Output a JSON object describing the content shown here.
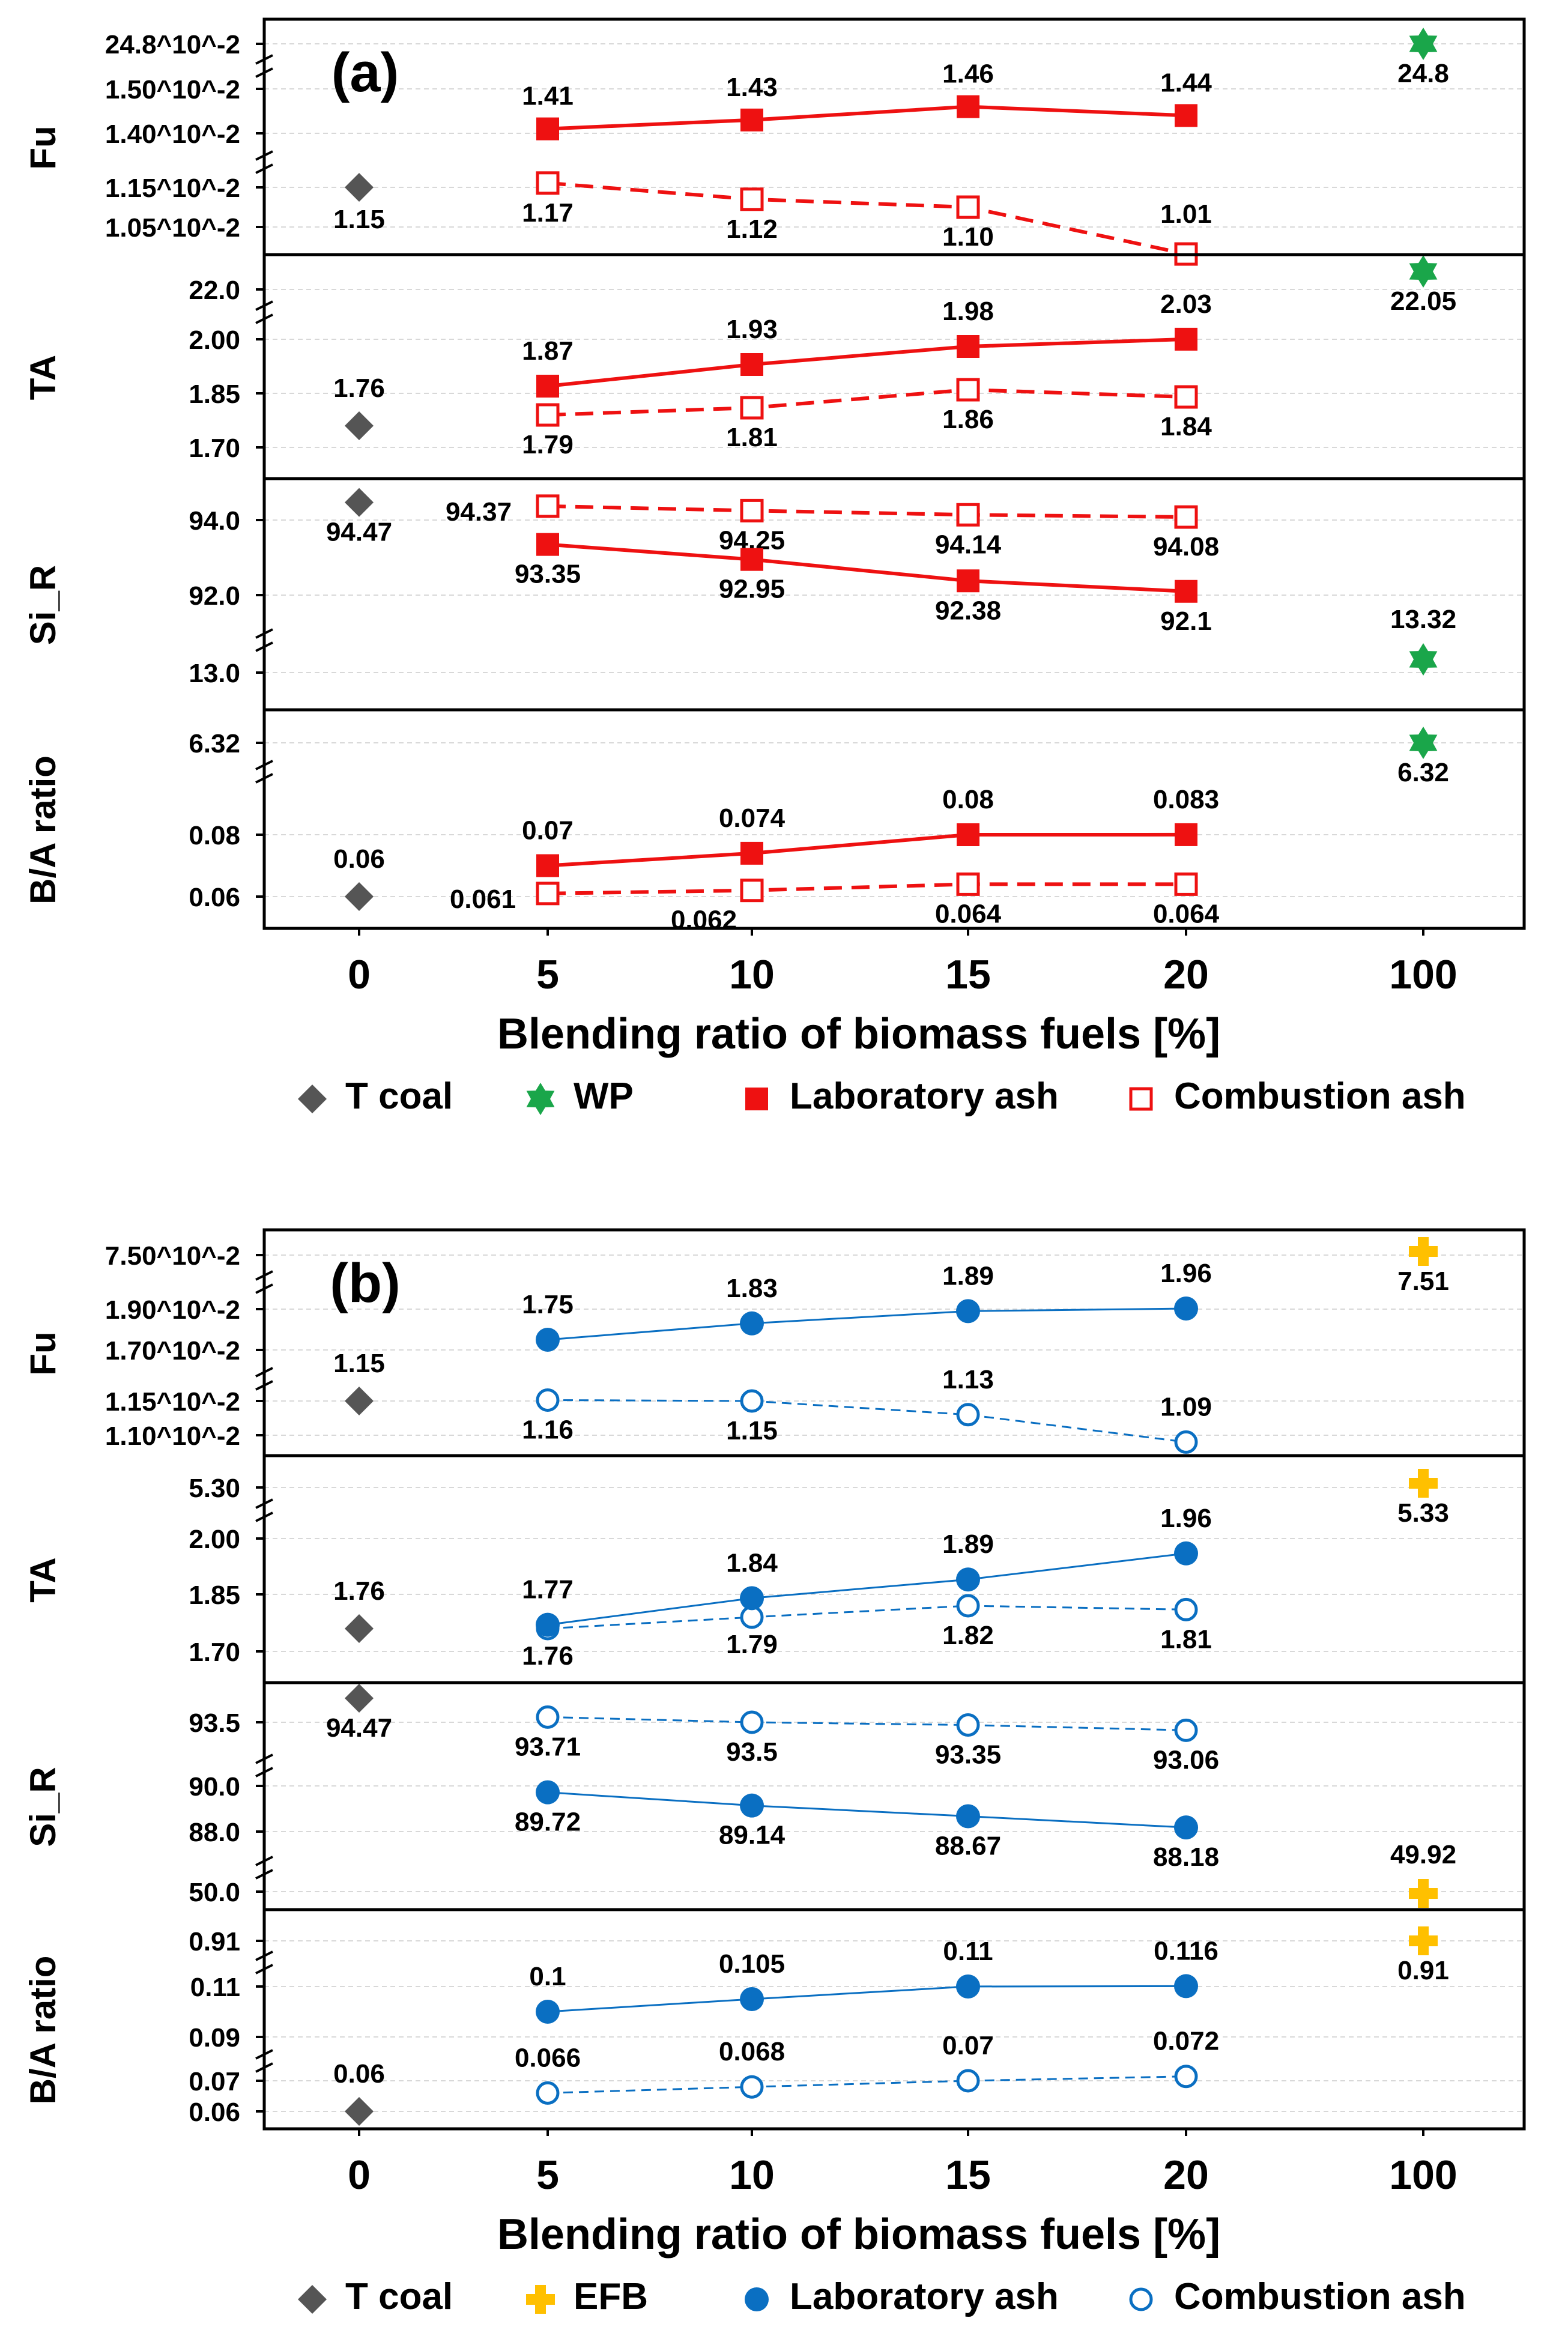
{
  "colors": {
    "tcoal": "#555555",
    "wp": "#1aa64a",
    "lab_a": "#ee1111",
    "efb": "#ffc000",
    "lab_b": "#0a6fc2",
    "axis": "#000000",
    "grid": "#d8d8d8"
  },
  "chart_data": [
    {
      "type": "line",
      "panel_label": "(a)",
      "x": [
        "0",
        "5",
        "10",
        "15",
        "20",
        "100"
      ],
      "xlabel": "Blending ratio of biomass fuels [%]",
      "legend": [
        {
          "label": "T coal",
          "marker": "diamond",
          "color": "#555555"
        },
        {
          "label": "WP",
          "marker": "star",
          "color": "#1aa64a"
        },
        {
          "label": "Laboratory ash",
          "marker": "square-filled",
          "color": "#ee1111"
        },
        {
          "label": "Combustion ash",
          "marker": "square-open",
          "color": "#ee1111"
        }
      ],
      "subplots": [
        {
          "ylabel": "Fu",
          "yticks": [
            "24.8^10^-2",
            "1.50^10^-2",
            "1.40^10^-2",
            "1.15^10^-2",
            "1.05^10^-2"
          ],
          "single_points": [
            {
              "series": "T coal",
              "x": "0",
              "value": 1.15,
              "label": "1.15"
            },
            {
              "series": "WP",
              "x": "100",
              "value": 24.8,
              "label": "24.8"
            }
          ],
          "series": [
            {
              "name": "Laboratory ash",
              "x": [
                "5",
                "10",
                "15",
                "20"
              ],
              "values": [
                1.41,
                1.43,
                1.46,
                1.44
              ],
              "labels": [
                "1.41",
                "1.43",
                "1.46",
                "1.44"
              ]
            },
            {
              "name": "Combustion ash",
              "x": [
                "5",
                "10",
                "15",
                "20"
              ],
              "values": [
                1.17,
                1.12,
                1.1,
                1.01
              ],
              "labels": [
                "1.17",
                "1.12",
                "1.10",
                "1.01"
              ]
            }
          ]
        },
        {
          "ylabel": "TA",
          "yticks": [
            "22.0",
            "2.00",
            "1.85",
            "1.70"
          ],
          "single_points": [
            {
              "series": "T coal",
              "x": "0",
              "value": 1.76,
              "label": "1.76"
            },
            {
              "series": "WP",
              "x": "100",
              "value": 22.05,
              "label": "22.05"
            }
          ],
          "series": [
            {
              "name": "Laboratory ash",
              "x": [
                "5",
                "10",
                "15",
                "20"
              ],
              "values": [
                1.87,
                1.93,
                1.98,
                2.03
              ],
              "labels": [
                "1.87",
                "1.93",
                "1.98",
                "2.03"
              ]
            },
            {
              "name": "Combustion ash",
              "x": [
                "5",
                "10",
                "15",
                "20"
              ],
              "values": [
                1.79,
                1.81,
                1.86,
                1.84
              ],
              "labels": [
                "1.79",
                "1.81",
                "1.86",
                "1.84"
              ]
            }
          ]
        },
        {
          "ylabel": "Si_R",
          "yticks": [
            "94.0",
            "92.0",
            "13.0"
          ],
          "single_points": [
            {
              "series": "T coal",
              "x": "0",
              "value": 94.47,
              "label": "94.47"
            },
            {
              "series": "WP",
              "x": "100",
              "value": 13.32,
              "label": "13.32"
            }
          ],
          "series": [
            {
              "name": "Laboratory ash",
              "x": [
                "5",
                "10",
                "15",
                "20"
              ],
              "values": [
                93.35,
                92.95,
                92.38,
                92.1
              ],
              "labels": [
                "93.35",
                "92.95",
                "92.38",
                "92.1"
              ]
            },
            {
              "name": "Combustion ash",
              "x": [
                "5",
                "10",
                "15",
                "20"
              ],
              "values": [
                94.37,
                94.25,
                94.14,
                94.08
              ],
              "labels": [
                "94.37",
                "94.25",
                "94.14",
                "94.08"
              ]
            }
          ]
        },
        {
          "ylabel": "B/A ratio",
          "yticks": [
            "6.32",
            "0.08",
            "0.06"
          ],
          "single_points": [
            {
              "series": "T coal",
              "x": "0",
              "value": 0.06,
              "label": "0.06"
            },
            {
              "series": "WP",
              "x": "100",
              "value": 6.32,
              "label": "6.32"
            }
          ],
          "series": [
            {
              "name": "Laboratory ash",
              "x": [
                "5",
                "10",
                "15",
                "20"
              ],
              "values": [
                0.07,
                0.074,
                0.08,
                0.083
              ],
              "labels": [
                "0.07",
                "0.074",
                "0.08",
                "0.083"
              ]
            },
            {
              "name": "Combustion ash",
              "x": [
                "5",
                "10",
                "15",
                "20"
              ],
              "values": [
                0.061,
                0.062,
                0.064,
                0.064
              ],
              "labels": [
                "0.061",
                "0.062",
                "0.064",
                "0.064"
              ]
            }
          ]
        }
      ]
    },
    {
      "type": "line",
      "panel_label": "(b)",
      "x": [
        "0",
        "5",
        "10",
        "15",
        "20",
        "100"
      ],
      "xlabel": "Blending ratio of biomass fuels [%]",
      "legend": [
        {
          "label": "T coal",
          "marker": "diamond",
          "color": "#555555"
        },
        {
          "label": "EFB",
          "marker": "plus",
          "color": "#ffc000"
        },
        {
          "label": "Laboratory ash",
          "marker": "circle-filled",
          "color": "#0a6fc2"
        },
        {
          "label": "Combustion ash",
          "marker": "circle-open",
          "color": "#0a6fc2"
        }
      ],
      "subplots": [
        {
          "ylabel": "Fu",
          "yticks": [
            "7.50^10^-2",
            "1.90^10^-2",
            "1.70^10^-2",
            "1.15^10^-2",
            "1.10^10^-2"
          ],
          "single_points": [
            {
              "series": "T coal",
              "x": "0",
              "value": 1.15,
              "label": "1.15"
            },
            {
              "series": "EFB",
              "x": "100",
              "value": 7.51,
              "label": "7.51"
            }
          ],
          "series": [
            {
              "name": "Laboratory ash",
              "x": [
                "5",
                "10",
                "15",
                "20"
              ],
              "values": [
                1.75,
                1.83,
                1.89,
                1.96
              ],
              "labels": [
                "1.75",
                "1.83",
                "1.89",
                "1.96"
              ]
            },
            {
              "name": "Combustion ash",
              "x": [
                "5",
                "10",
                "15",
                "20"
              ],
              "values": [
                1.16,
                1.15,
                1.13,
                1.09
              ],
              "labels": [
                "1.16",
                "1.15",
                "1.13",
                "1.09"
              ]
            }
          ]
        },
        {
          "ylabel": "TA",
          "yticks": [
            "5.30",
            "2.00",
            "1.85",
            "1.70"
          ],
          "single_points": [
            {
              "series": "T coal",
              "x": "0",
              "value": 1.76,
              "label": "1.76"
            },
            {
              "series": "EFB",
              "x": "100",
              "value": 5.33,
              "label": "5.33"
            }
          ],
          "series": [
            {
              "name": "Laboratory ash",
              "x": [
                "5",
                "10",
                "15",
                "20"
              ],
              "values": [
                1.77,
                1.84,
                1.89,
                1.96
              ],
              "labels": [
                "1.77",
                "1.84",
                "1.89",
                "1.96"
              ]
            },
            {
              "name": "Combustion ash",
              "x": [
                "5",
                "10",
                "15",
                "20"
              ],
              "values": [
                1.76,
                1.79,
                1.82,
                1.81
              ],
              "labels": [
                "1.76",
                "1.79",
                "1.82",
                "1.81"
              ]
            }
          ]
        },
        {
          "ylabel": "Si_R",
          "yticks": [
            "93.5",
            "90.0",
            "88.0",
            "50.0"
          ],
          "single_points": [
            {
              "series": "T coal",
              "x": "0",
              "value": 94.47,
              "label": "94.47"
            },
            {
              "series": "EFB",
              "x": "100",
              "value": 49.92,
              "label": "49.92"
            }
          ],
          "series": [
            {
              "name": "Laboratory ash",
              "x": [
                "5",
                "10",
                "15",
                "20"
              ],
              "values": [
                89.72,
                89.14,
                88.67,
                88.18
              ],
              "labels": [
                "89.72",
                "89.14",
                "88.67",
                "88.18"
              ]
            },
            {
              "name": "Combustion ash",
              "x": [
                "5",
                "10",
                "15",
                "20"
              ],
              "values": [
                93.71,
                93.5,
                93.35,
                93.06
              ],
              "labels": [
                "93.71",
                "93.5",
                "93.35",
                "93.06"
              ]
            }
          ]
        },
        {
          "ylabel": "B/A ratio",
          "yticks": [
            "0.91",
            "0.11",
            "0.09",
            "0.07",
            "0.06"
          ],
          "single_points": [
            {
              "series": "T coal",
              "x": "0",
              "value": 0.06,
              "label": "0.06"
            },
            {
              "series": "EFB",
              "x": "100",
              "value": 0.91,
              "label": "0.91"
            }
          ],
          "series": [
            {
              "name": "Laboratory ash",
              "x": [
                "5",
                "10",
                "15",
                "20"
              ],
              "values": [
                0.1,
                0.105,
                0.11,
                0.116
              ],
              "labels": [
                "0.1",
                "0.105",
                "0.11",
                "0.116"
              ]
            },
            {
              "name": "Combustion ash",
              "x": [
                "5",
                "10",
                "15",
                "20"
              ],
              "values": [
                0.066,
                0.068,
                0.07,
                0.072
              ],
              "labels": [
                "0.066",
                "0.068",
                "0.07",
                "0.072"
              ]
            }
          ]
        }
      ]
    }
  ]
}
